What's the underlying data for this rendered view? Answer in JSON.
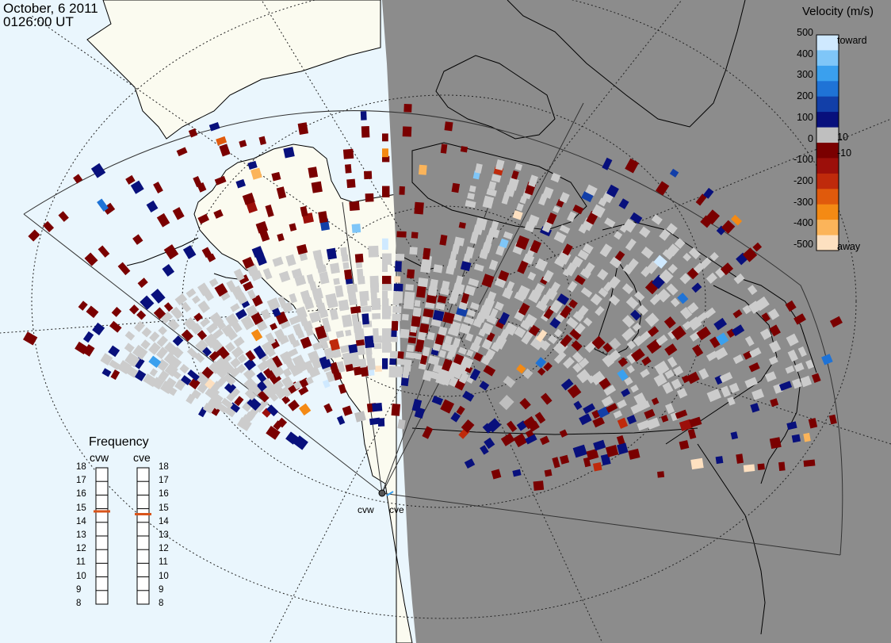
{
  "header": {
    "date": "October, 6 2011",
    "time": "0126:00 UT"
  },
  "colorbar": {
    "title": "Velocity (m/s)",
    "ticks_left": [
      "500",
      "400",
      "300",
      "200",
      "100",
      "0",
      "-100",
      "-200",
      "-300",
      "-400",
      "-500"
    ],
    "ticks_right": [
      "toward",
      "10",
      "-10",
      "away"
    ],
    "colors": [
      "#cfe9ff",
      "#7fc6f8",
      "#3aa0ee",
      "#1f73d6",
      "#123fa8",
      "#08107c",
      "#bfbfbf",
      "#7a0000",
      "#9c0f0a",
      "#bf2a0b",
      "#e05a0c",
      "#f48a14",
      "#fbb45a",
      "#fde0c0"
    ]
  },
  "frequency": {
    "title": "Frequency",
    "radars": [
      "cvw",
      "cve"
    ],
    "ticks": [
      "18",
      "17",
      "16",
      "15",
      "14",
      "13",
      "12",
      "11",
      "10",
      "9",
      "8"
    ],
    "cvw_value": 14.8,
    "cve_value": 14.6,
    "indicator_color": "#d9541a"
  },
  "radars": {
    "west_label": "cvw",
    "east_label": "cve"
  },
  "map": {
    "ocean_color": "#eaf6fd",
    "land_color": "#fbfbf0",
    "night_color": "#8c8c8c",
    "ground_scatter_color": "#cccccc"
  }
}
